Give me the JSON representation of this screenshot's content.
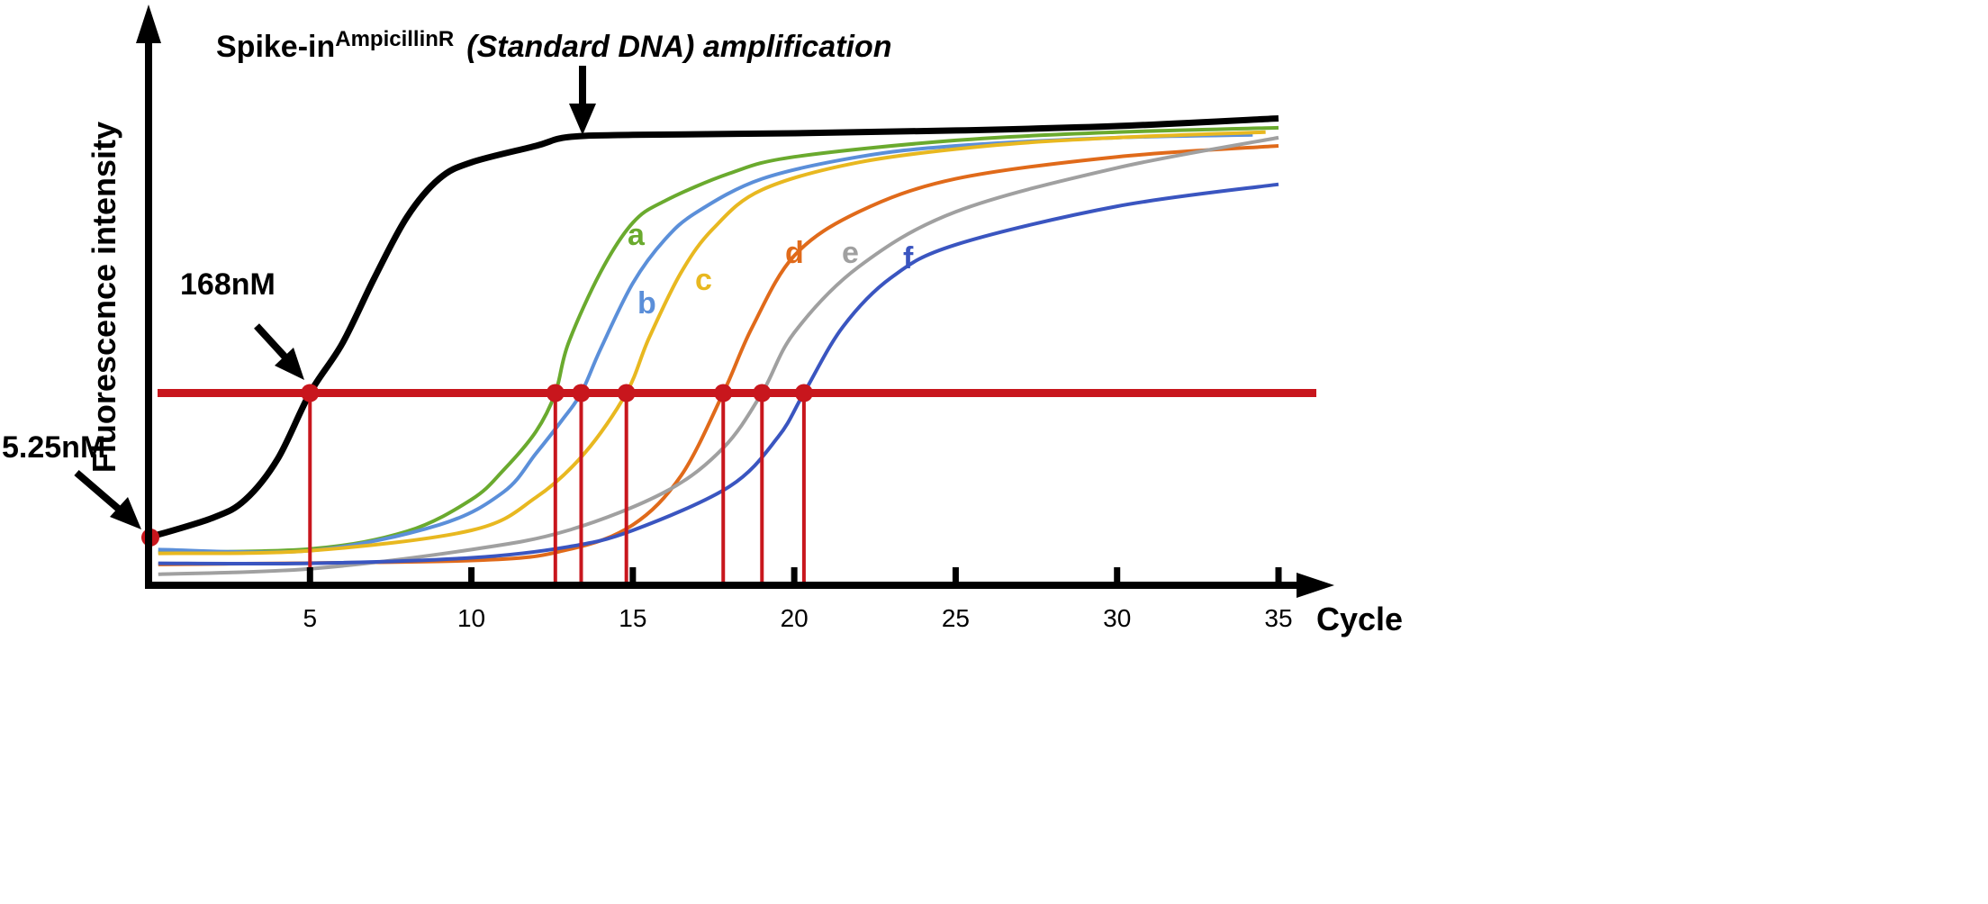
{
  "chart_data": {
    "type": "line",
    "title": "Spike-in",
    "title_superscript": "AmpicillinR",
    "title_rest": "(Standard DNA) amplification",
    "xlabel": "Cycle",
    "ylabel": "Fluorescence intensity",
    "xlim": [
      0,
      35
    ],
    "ylim": [
      0,
      100
    ],
    "xticks": [
      5,
      10,
      15,
      20,
      25,
      30,
      35
    ],
    "grid": false,
    "threshold": 35,
    "threshold_color": "#c8161d",
    "series": [
      {
        "name": "",
        "color": "#000000",
        "width": 7,
        "points": [
          [
            0,
            8.7
          ],
          [
            2,
            12.3
          ],
          [
            3,
            15.6
          ],
          [
            4,
            23
          ],
          [
            5,
            35
          ],
          [
            6,
            44
          ],
          [
            7,
            56
          ],
          [
            8,
            67
          ],
          [
            9,
            74
          ],
          [
            10,
            77
          ],
          [
            12,
            80
          ],
          [
            13,
            81.6
          ],
          [
            15,
            82
          ],
          [
            20,
            82.3
          ],
          [
            25,
            82.8
          ],
          [
            30,
            83.6
          ],
          [
            35,
            85
          ]
        ]
      },
      {
        "name": "a",
        "color": "#6aaa2e",
        "width": 4,
        "points": [
          [
            0.3,
            6
          ],
          [
            5,
            6.6
          ],
          [
            8,
            9.8
          ],
          [
            10,
            15.6
          ],
          [
            11,
            21
          ],
          [
            12,
            28
          ],
          [
            12.6,
            35
          ],
          [
            13,
            44
          ],
          [
            14,
            57
          ],
          [
            15,
            66
          ],
          [
            16,
            70
          ],
          [
            18,
            75
          ],
          [
            20,
            78
          ],
          [
            25,
            81
          ],
          [
            30,
            82.5
          ],
          [
            35,
            83.3
          ]
        ]
      },
      {
        "name": "b",
        "color": "#5b8fd9",
        "width": 4,
        "points": [
          [
            0.3,
            6.5
          ],
          [
            5,
            6.3
          ],
          [
            9,
            11
          ],
          [
            11,
            17
          ],
          [
            12,
            24
          ],
          [
            12.8,
            30
          ],
          [
            13.4,
            35
          ],
          [
            14,
            43
          ],
          [
            15,
            55
          ],
          [
            16,
            63
          ],
          [
            17,
            68
          ],
          [
            19,
            74
          ],
          [
            22,
            78
          ],
          [
            25,
            80
          ],
          [
            30,
            81.5
          ],
          [
            34.2,
            82
          ]
        ]
      },
      {
        "name": "c",
        "color": "#e8b820",
        "width": 4,
        "points": [
          [
            0.3,
            5.8
          ],
          [
            5,
            6.3
          ],
          [
            10,
            10
          ],
          [
            12,
            16
          ],
          [
            13.5,
            24
          ],
          [
            14.8,
            35
          ],
          [
            15.5,
            45
          ],
          [
            16.5,
            57
          ],
          [
            17.5,
            65
          ],
          [
            19,
            72
          ],
          [
            22,
            77
          ],
          [
            26,
            80
          ],
          [
            30,
            81.5
          ],
          [
            34.6,
            82.5
          ]
        ]
      },
      {
        "name": "d",
        "color": "#e06a1a",
        "width": 4,
        "points": [
          [
            0.3,
            3.8
          ],
          [
            10,
            4.5
          ],
          [
            13,
            6.5
          ],
          [
            15,
            11
          ],
          [
            16.5,
            20
          ],
          [
            17.8,
            35
          ],
          [
            18.7,
            47
          ],
          [
            20,
            60
          ],
          [
            22,
            68
          ],
          [
            25,
            74
          ],
          [
            30,
            78
          ],
          [
            35,
            80
          ]
        ]
      },
      {
        "name": "e",
        "color": "#a0a0a0",
        "width": 4,
        "points": [
          [
            0.3,
            2
          ],
          [
            5,
            3
          ],
          [
            10,
            6.5
          ],
          [
            13,
            10
          ],
          [
            16,
            17
          ],
          [
            17.8,
            25
          ],
          [
            19,
            35
          ],
          [
            20,
            46
          ],
          [
            22,
            58
          ],
          [
            25,
            68
          ],
          [
            30,
            76
          ],
          [
            35,
            81.5
          ]
        ]
      },
      {
        "name": "f",
        "color": "#3a55c0",
        "width": 4,
        "points": [
          [
            0.3,
            4
          ],
          [
            5,
            4
          ],
          [
            10,
            5
          ],
          [
            13,
            7
          ],
          [
            15,
            10
          ],
          [
            18,
            18
          ],
          [
            19.5,
            27
          ],
          [
            20.3,
            35
          ],
          [
            21.5,
            47
          ],
          [
            23,
            56
          ],
          [
            25,
            62
          ],
          [
            30,
            69
          ],
          [
            35,
            73
          ]
        ]
      }
    ],
    "threshold_crossings": [
      5,
      12.6,
      13.4,
      14.8,
      17.8,
      19,
      20.3
    ],
    "annotations": [
      {
        "text": "168nM",
        "x": 5,
        "y": 35
      },
      {
        "text": "5.25nM",
        "x": 0,
        "y": 8.7
      }
    ]
  }
}
